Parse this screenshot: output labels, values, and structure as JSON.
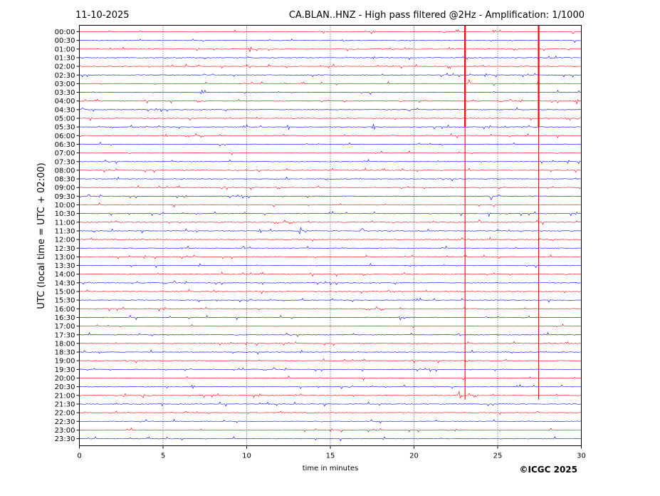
{
  "chart_data": {
    "type": "line",
    "title": "CA.BLAN..HNZ - High pass filtered @2Hz - Amplification: 1/1000",
    "date": "11-10-2025",
    "xlabel": "time in minutes",
    "ylabel": "UTC (local time = UTC + 02:00)",
    "copyright": "©ICGC 2025",
    "xlim": [
      0,
      30
    ],
    "x_ticks": [
      "0",
      "5",
      "10",
      "15",
      "20",
      "25",
      "30"
    ],
    "x_tick_values": [
      0,
      5,
      10,
      15,
      20,
      25,
      30
    ],
    "grid_x": true,
    "trace_colors": [
      "#ff0000",
      "#0000ff"
    ],
    "rows": [
      "00:00",
      "00:30",
      "01:00",
      "01:30",
      "02:00",
      "02:30",
      "03:00",
      "03:30",
      "04:00",
      "04:30",
      "05:00",
      "05:30",
      "06:00",
      "06:30",
      "07:00",
      "07:30",
      "08:00",
      "08:30",
      "09:00",
      "09:30",
      "10:00",
      "10:30",
      "11:00",
      "11:30",
      "12:00",
      "12:30",
      "13:00",
      "13:30",
      "14:00",
      "14:30",
      "15:00",
      "15:30",
      "16:00",
      "16:30",
      "17:00",
      "17:30",
      "18:00",
      "18:30",
      "19:00",
      "19:30",
      "20:00",
      "20:30",
      "21:00",
      "21:30",
      "22:00",
      "22:30",
      "23:00",
      "23:30"
    ],
    "events": [
      {
        "x": 23.05,
        "rows": [
          0,
          42
        ],
        "color": "#ff0000"
      },
      {
        "x": 27.45,
        "rows": [
          0,
          42
        ],
        "color": "#ff0000"
      }
    ],
    "spikes": [
      {
        "row": 0,
        "x": 17.6,
        "amp": 0.5
      },
      {
        "row": 0,
        "x": 24.8,
        "amp": 0.6
      },
      {
        "row": 0,
        "x": 21.8,
        "amp": 0.3
      },
      {
        "row": 1,
        "x": 2.0,
        "amp": 0.3
      },
      {
        "row": 1,
        "x": 15.8,
        "amp": 0.3
      },
      {
        "row": 2,
        "x": 7.1,
        "amp": 0.6
      },
      {
        "row": 2,
        "x": 10.2,
        "amp": 0.5
      },
      {
        "row": 3,
        "x": 17.6,
        "amp": 0.3
      },
      {
        "row": 3,
        "x": 28.5,
        "amp": 0.3
      },
      {
        "row": 4,
        "x": 10.0,
        "amp": 0.4
      },
      {
        "row": 4,
        "x": 26.8,
        "amp": 0.3
      },
      {
        "row": 5,
        "x": 7.5,
        "amp": 0.3
      },
      {
        "row": 6,
        "x": 23.3,
        "amp": 0.6
      },
      {
        "row": 6,
        "x": 10.9,
        "amp": 0.3
      },
      {
        "row": 7,
        "x": 7.3,
        "amp": 0.4
      },
      {
        "row": 8,
        "x": 29.7,
        "amp": 0.7
      },
      {
        "row": 9,
        "x": 0.2,
        "amp": 0.8
      },
      {
        "row": 9,
        "x": 19.7,
        "amp": 0.4
      },
      {
        "row": 9,
        "x": 25.2,
        "amp": 0.4
      },
      {
        "row": 10,
        "x": 29.1,
        "amp": 0.3
      },
      {
        "row": 11,
        "x": 17.6,
        "amp": 0.7
      },
      {
        "row": 11,
        "x": 12.5,
        "amp": 0.4
      },
      {
        "row": 11,
        "x": 4.0,
        "amp": 0.3
      },
      {
        "row": 11,
        "x": 25.5,
        "amp": 0.4
      },
      {
        "row": 12,
        "x": 5.2,
        "amp": 0.3
      },
      {
        "row": 14,
        "x": 3.0,
        "amp": 0.3
      },
      {
        "row": 16,
        "x": 17.1,
        "amp": 0.5
      },
      {
        "row": 16,
        "x": 10.7,
        "amp": 0.4
      },
      {
        "row": 17,
        "x": 6.2,
        "amp": 0.4
      },
      {
        "row": 18,
        "x": 8.5,
        "amp": 0.3
      },
      {
        "row": 19,
        "x": 24.6,
        "amp": 0.8
      },
      {
        "row": 19,
        "x": 6.3,
        "amp": 0.3
      },
      {
        "row": 20,
        "x": 24.8,
        "amp": 0.4
      },
      {
        "row": 21,
        "x": 24.5,
        "amp": 0.5
      },
      {
        "row": 22,
        "x": 23.9,
        "amp": 0.4
      },
      {
        "row": 22,
        "x": 6.0,
        "amp": 0.3
      },
      {
        "row": 23,
        "x": 13.2,
        "amp": 0.6
      },
      {
        "row": 23,
        "x": 16.9,
        "amp": 0.7
      },
      {
        "row": 23,
        "x": 10.8,
        "amp": 0.4
      },
      {
        "row": 25,
        "x": 9.8,
        "amp": 0.4
      },
      {
        "row": 25,
        "x": 6.2,
        "amp": 0.3
      },
      {
        "row": 30,
        "x": 8.1,
        "amp": 0.4
      },
      {
        "row": 30,
        "x": 18.5,
        "amp": 0.3
      },
      {
        "row": 33,
        "x": 19.2,
        "amp": 0.4
      },
      {
        "row": 35,
        "x": 22.7,
        "amp": 0.4
      },
      {
        "row": 39,
        "x": 9.8,
        "amp": 0.5
      },
      {
        "row": 41,
        "x": 6.8,
        "amp": 0.6
      },
      {
        "row": 41,
        "x": 21.3,
        "amp": 0.3
      },
      {
        "row": 42,
        "x": 22.7,
        "amp": 0.8
      },
      {
        "row": 42,
        "x": 2.7,
        "amp": 0.5
      },
      {
        "row": 42,
        "x": 4.2,
        "amp": 0.6
      },
      {
        "row": 42,
        "x": 3.8,
        "amp": 0.4
      },
      {
        "row": 43,
        "x": 11.3,
        "amp": 0.7
      },
      {
        "row": 43,
        "x": 4.8,
        "amp": 0.3
      },
      {
        "row": 44,
        "x": 27.4,
        "amp": 0.4
      },
      {
        "row": 44,
        "x": 19.1,
        "amp": 0.3
      },
      {
        "row": 45,
        "x": 17.8,
        "amp": 0.3
      },
      {
        "row": 46,
        "x": 22.5,
        "amp": 0.4
      }
    ]
  }
}
